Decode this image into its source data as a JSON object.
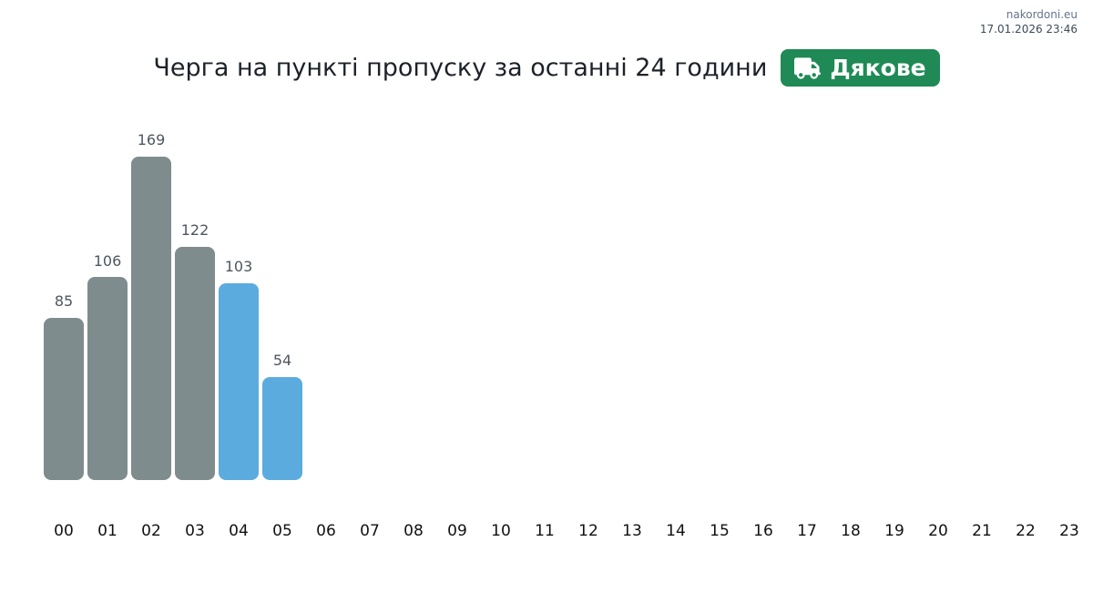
{
  "header": {
    "site_link": "nakordoni.eu",
    "timestamp": "17.01.2026 23:46"
  },
  "colors": {
    "badge_green": "#1f8a55",
    "bar_gray": "#7f8c8d",
    "bar_blue": "#5babdf",
    "value_label": "#4d5760",
    "tick_label": "#111111",
    "site_link": "#64748b",
    "timestamp_text": "#3d4b59"
  },
  "chart_data": {
    "type": "bar",
    "title": "Черга на пункті пропуску за останні 24 години",
    "badge_label": "Дякове",
    "badge_icon": "truck-icon",
    "xlabel": "",
    "ylabel": "",
    "ylim": [
      0,
      180
    ],
    "grid": false,
    "legend": "none",
    "value_labels": true,
    "categories": [
      "00",
      "01",
      "02",
      "03",
      "04",
      "05",
      "06",
      "07",
      "08",
      "09",
      "10",
      "11",
      "12",
      "13",
      "14",
      "15",
      "16",
      "17",
      "18",
      "19",
      "20",
      "21",
      "22",
      "23"
    ],
    "values": [
      85,
      106,
      169,
      122,
      103,
      54,
      null,
      null,
      null,
      null,
      null,
      null,
      null,
      null,
      null,
      null,
      null,
      null,
      null,
      null,
      null,
      null,
      null,
      null
    ],
    "bar_colors": [
      "#7f8c8d",
      "#7f8c8d",
      "#7f8c8d",
      "#7f8c8d",
      "#5babdf",
      "#5babdf",
      null,
      null,
      null,
      null,
      null,
      null,
      null,
      null,
      null,
      null,
      null,
      null,
      null,
      null,
      null,
      null,
      null,
      null
    ]
  }
}
